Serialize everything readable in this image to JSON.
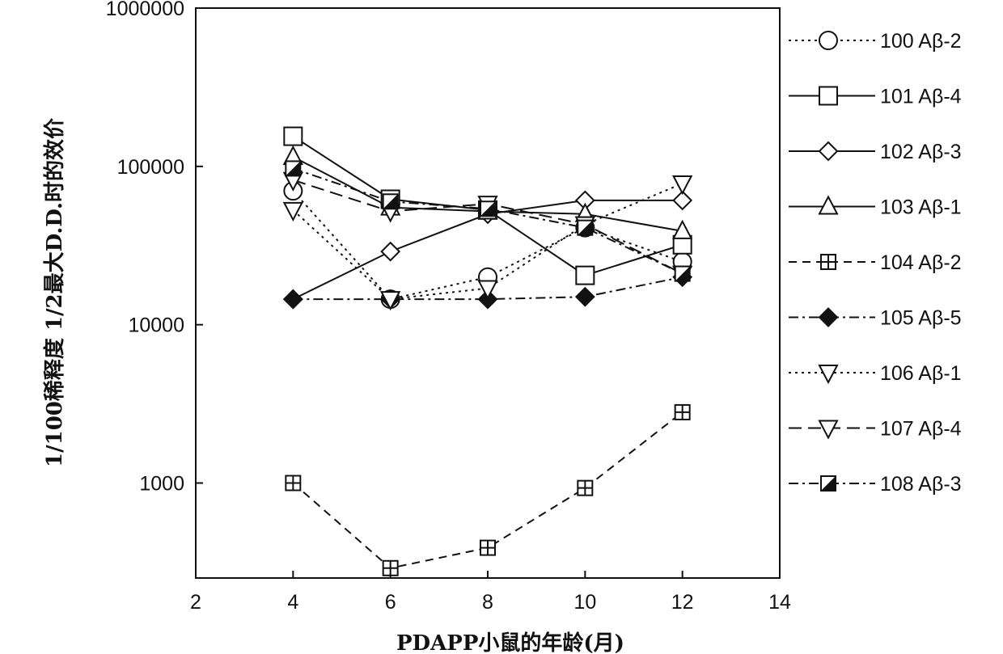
{
  "chart_data": {
    "type": "line",
    "xlabel": "PDAPP小鼠的年龄(月)",
    "ylabel": "1/100稀释度 1/2最大D.D.时的效价",
    "x_ticks": [
      2,
      4,
      6,
      8,
      10,
      12,
      14
    ],
    "y_ticks": [
      1000,
      10000,
      100000,
      1000000
    ],
    "y_scale": "log",
    "xlim": [
      2,
      14
    ],
    "ylim": [
      250,
      1000000
    ],
    "grid": false,
    "legend_position": "right",
    "series": [
      {
        "name": "100 Aβ-2",
        "marker": "circle",
        "dash": "dotted",
        "x": [
          4,
          6,
          8,
          10,
          12
        ],
        "y": [
          70000,
          14500,
          20000,
          41000,
          25000
        ]
      },
      {
        "name": "101 Aβ-4",
        "marker": "square",
        "dash": "solid",
        "x": [
          4,
          6,
          8,
          10,
          12
        ],
        "y": [
          155000,
          62000,
          53000,
          20500,
          32000
        ]
      },
      {
        "name": "102 Aβ-3",
        "marker": "diamond",
        "dash": "solid",
        "x": [
          4,
          6,
          8,
          10,
          12
        ],
        "y": [
          14500,
          29000,
          50000,
          61000,
          61000
        ]
      },
      {
        "name": "103 Aβ-1",
        "marker": "triangle-up",
        "dash": "solid",
        "x": [
          4,
          6,
          8,
          10,
          12
        ],
        "y": [
          115000,
          55000,
          52000,
          50000,
          39000
        ]
      },
      {
        "name": "104 Aβ-2",
        "marker": "square-cross",
        "dash": "dashed",
        "x": [
          4,
          6,
          8,
          10,
          12
        ],
        "y": [
          1000,
          290,
          390,
          930,
          2800
        ]
      },
      {
        "name": "105 Aβ-5",
        "marker": "diamond-filled",
        "dash": "dashdot",
        "x": [
          4,
          6,
          8,
          10,
          12
        ],
        "y": [
          14500,
          14500,
          14500,
          15000,
          20000
        ]
      },
      {
        "name": "106 Aβ-1",
        "marker": "triangle-down",
        "dash": "dotted",
        "x": [
          4,
          6,
          8,
          10,
          12
        ],
        "y": [
          53000,
          14500,
          17000,
          43000,
          78000
        ]
      },
      {
        "name": "107 Aβ-4",
        "marker": "triangle-down",
        "dash": "longdash",
        "x": [
          4,
          6,
          8,
          10,
          12
        ],
        "y": [
          82000,
          52000,
          58000,
          43000,
          21000
        ]
      },
      {
        "name": "108 Aβ-3",
        "marker": "square-half",
        "dash": "dashdot",
        "x": [
          4,
          6,
          8,
          10,
          12
        ],
        "y": [
          97000,
          60000,
          54000,
          41000,
          21000
        ]
      }
    ]
  }
}
